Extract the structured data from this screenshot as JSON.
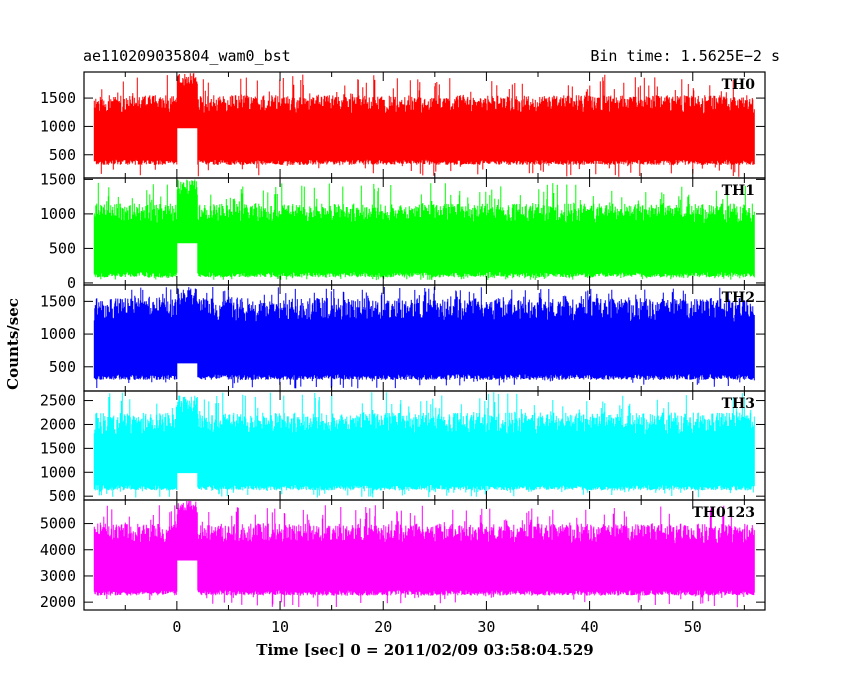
{
  "chart_data": {
    "type": "line",
    "title": "ae110209035804_wam0_bst",
    "subtitle": "Bin time: 1.5625E−2 s",
    "xlabel": "Time [sec] 0 = 2011/02/09 03:58:04.529",
    "ylabel": "Counts/sec",
    "xlim": [
      -9,
      57
    ],
    "x_range": [
      -8,
      56
    ],
    "xticks": [
      0,
      10,
      20,
      30,
      40,
      50
    ],
    "panels": [
      {
        "name": "TH0",
        "color": "#ff0000",
        "ylim": [
          90,
          1960
        ],
        "yticks": [
          500,
          1000,
          1500
        ],
        "baseline": 960,
        "band_low": 320,
        "band_high": 1550,
        "peak_high": 1920,
        "dip_low": 110,
        "burst": {
          "x": [
            0,
            2
          ],
          "level": 1350,
          "spike_high": 1950
        }
      },
      {
        "name": "TH1",
        "color": "#00ff00",
        "ylim": [
          -30,
          1520
        ],
        "yticks": [
          0,
          500,
          1000,
          1500
        ],
        "baseline": 620,
        "band_low": 80,
        "band_high": 1150,
        "peak_high": 1450,
        "dip_low": 40,
        "burst": {
          "x": [
            0,
            2
          ],
          "level": 900,
          "spike_high": 1500
        }
      },
      {
        "name": "TH2",
        "color": "#0000ff",
        "ylim": [
          130,
          1750
        ],
        "yticks": [
          500,
          1000,
          1500
        ],
        "baseline": 880,
        "band_low": 300,
        "band_high": 1550,
        "peak_high": 1720,
        "dip_low": 170,
        "burst": {
          "x": [
            0,
            2
          ],
          "level": 900,
          "spike_high": 1720
        }
      },
      {
        "name": "TH3",
        "color": "#00ffff",
        "ylim": [
          420,
          2700
        ],
        "yticks": [
          500,
          1000,
          1500,
          2000,
          2500
        ],
        "baseline": 1400,
        "band_low": 620,
        "band_high": 2250,
        "peak_high": 2680,
        "dip_low": 470,
        "burst": {
          "x": [
            0,
            2
          ],
          "level": 1450,
          "spike_high": 2650
        }
      },
      {
        "name": "TH0123",
        "color": "#ff00ff",
        "ylim": [
          1700,
          5900
        ],
        "yticks": [
          2000,
          3000,
          4000,
          5000
        ],
        "baseline": 3600,
        "band_low": 2250,
        "band_high": 5000,
        "peak_high": 5700,
        "dip_low": 1800,
        "burst": {
          "x": [
            0,
            2
          ],
          "level": 4400,
          "spike_high": 5900
        }
      }
    ]
  }
}
